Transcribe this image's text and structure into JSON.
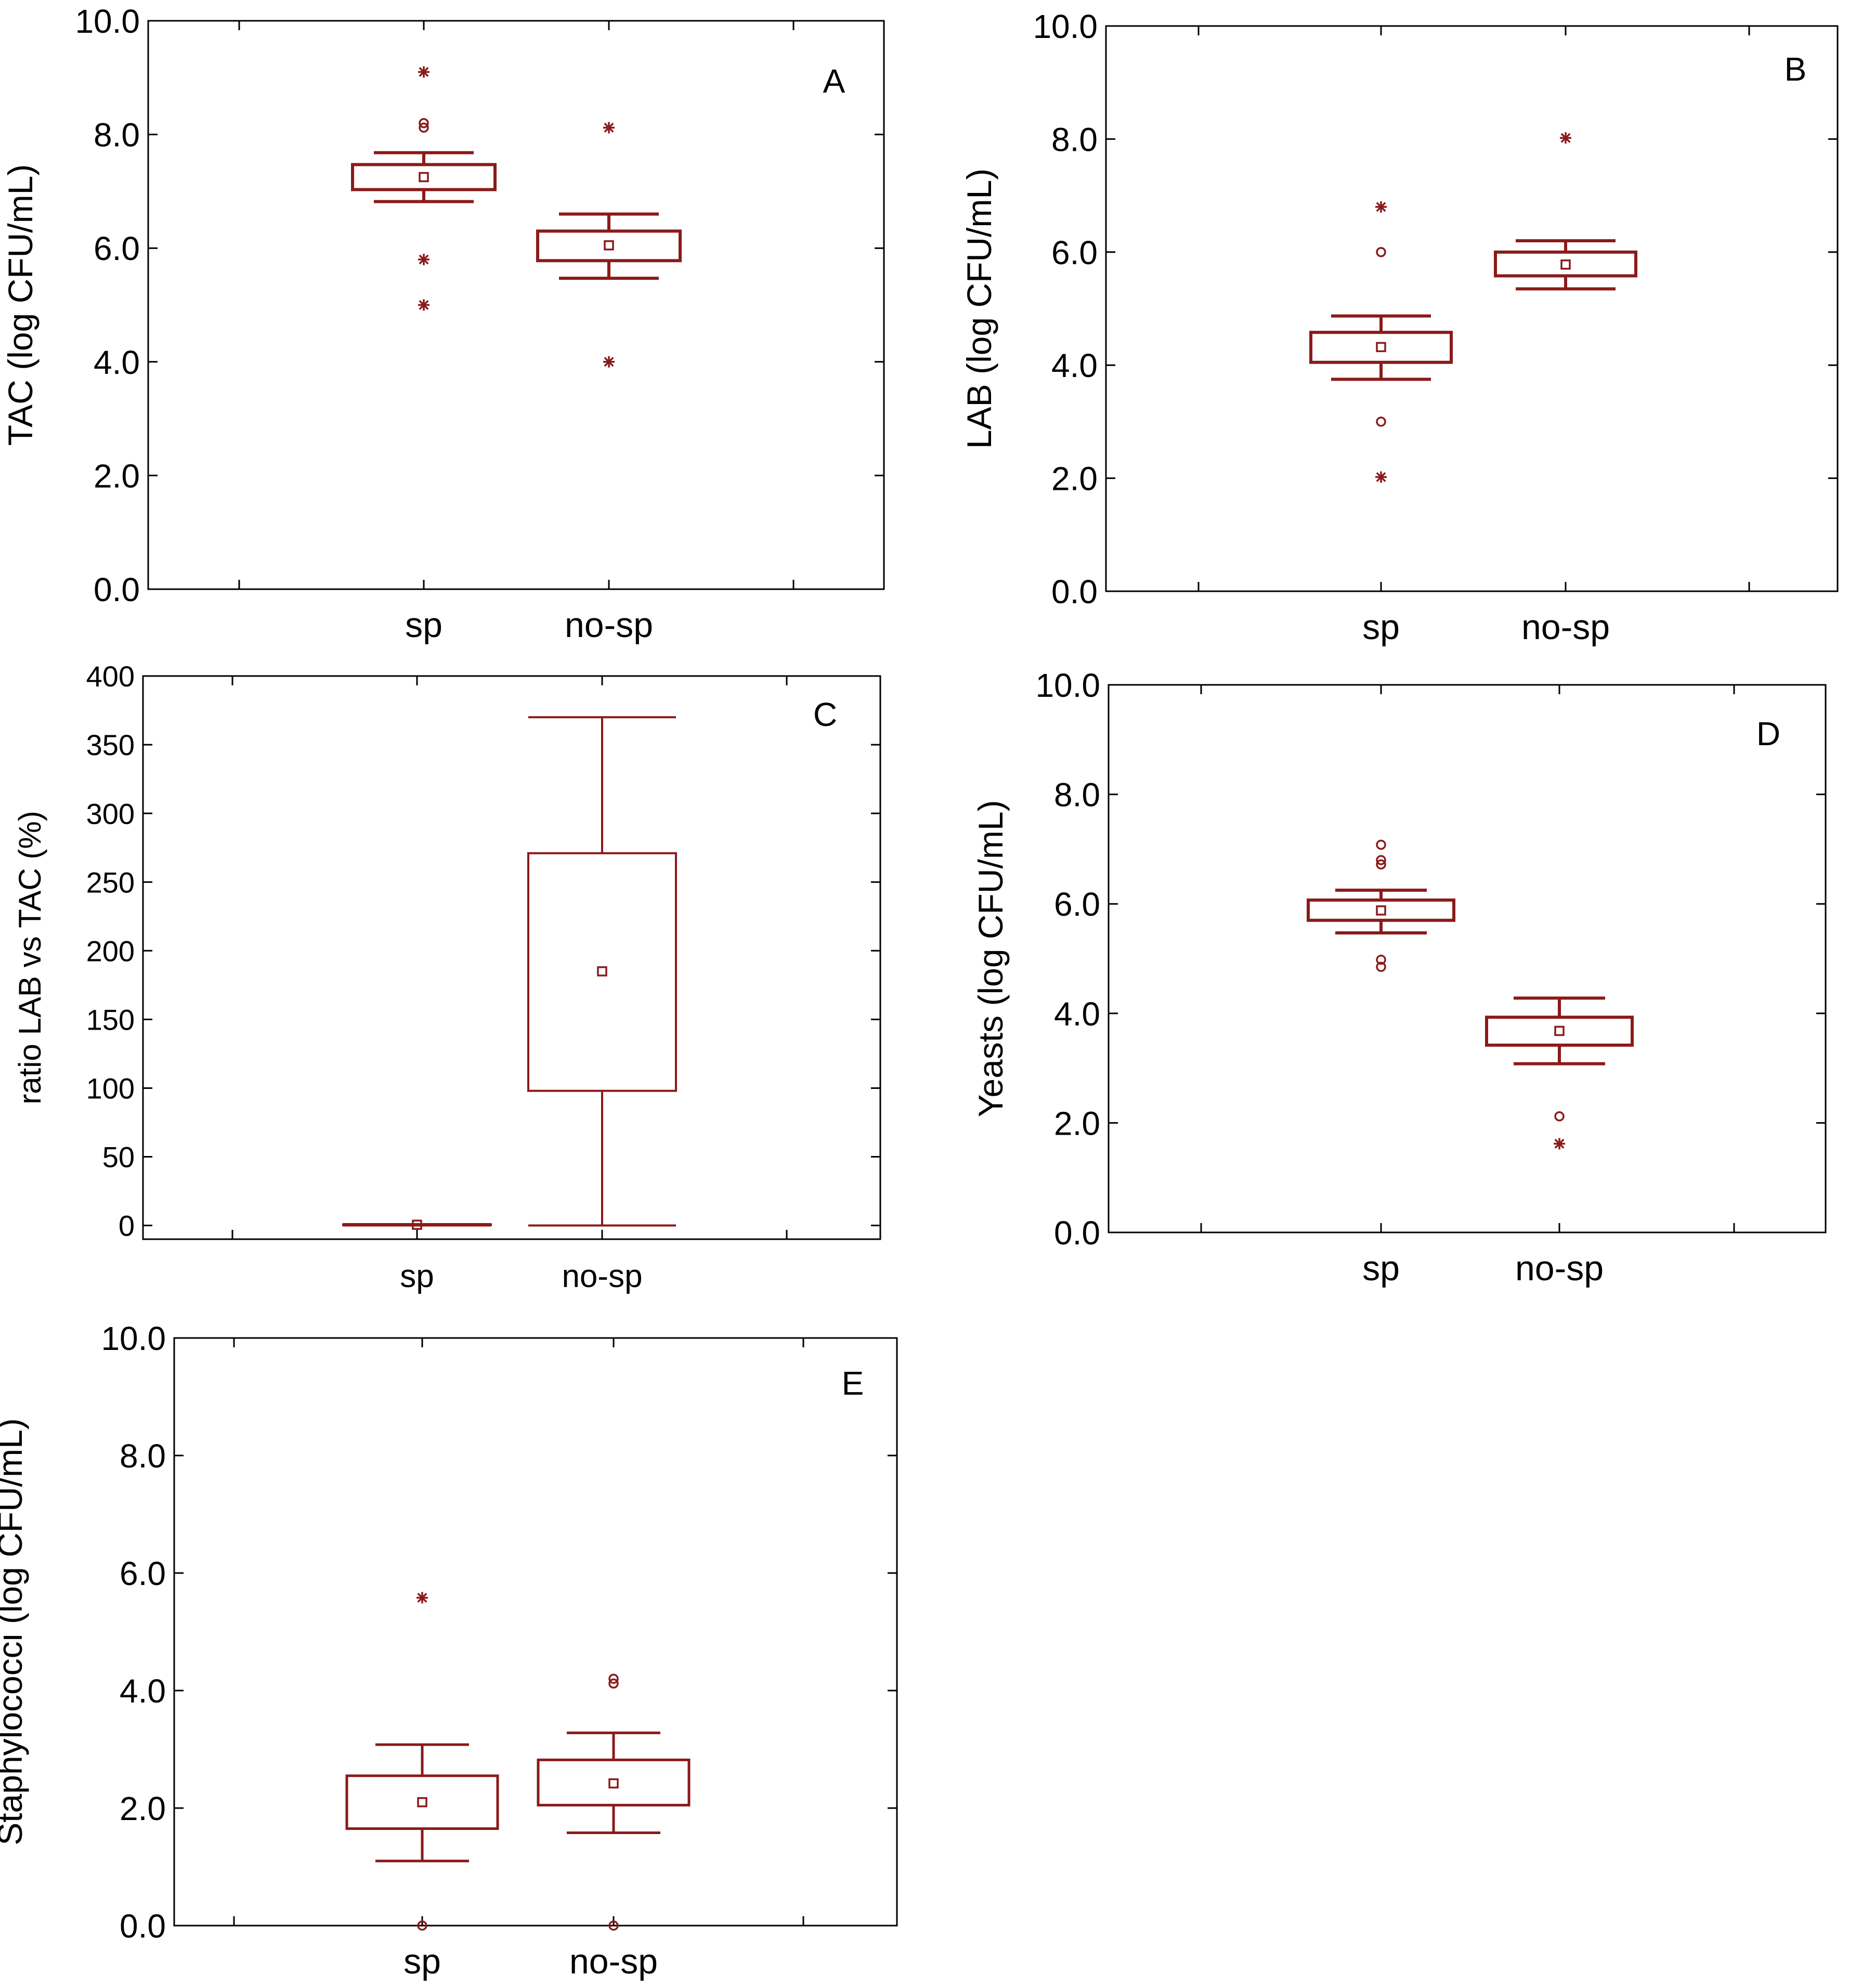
{
  "colors": {
    "mark": "#8B1A1A",
    "frame": "#000000",
    "text": "#000000"
  },
  "chart_data": [
    {
      "type": "box",
      "panel_label": "A",
      "ylabel": "TAC (log CFU/mL)",
      "ylim": [
        0,
        10
      ],
      "yticks": [
        0,
        2,
        4,
        6,
        8,
        10
      ],
      "ytick_labels": [
        "0.0",
        "2.0",
        "4.0",
        "6.0",
        "8.0",
        "10.0"
      ],
      "categories": [
        "sp",
        "no-sp"
      ],
      "boxes": [
        {
          "category": "sp",
          "mean": 7.25,
          "q1": 7.03,
          "q3": 7.47,
          "whisker_low": 6.82,
          "whisker_high": 7.68,
          "outliers": [
            8.2,
            8.12
          ],
          "extremes": [
            9.1,
            5.8,
            5.0
          ]
        },
        {
          "category": "no-sp",
          "mean": 6.05,
          "q1": 5.78,
          "q3": 6.3,
          "whisker_low": 5.47,
          "whisker_high": 6.6,
          "outliers": [],
          "extremes": [
            8.12,
            4.0
          ]
        }
      ]
    },
    {
      "type": "box",
      "panel_label": "B",
      "ylabel": "LAB (log CFU/mL)",
      "ylim": [
        0,
        10
      ],
      "yticks": [
        0,
        2,
        4,
        6,
        8,
        10
      ],
      "ytick_labels": [
        "0.0",
        "2.0",
        "4.0",
        "6.0",
        "8.0",
        "10.0"
      ],
      "categories": [
        "sp",
        "no-sp"
      ],
      "boxes": [
        {
          "category": "sp",
          "mean": 4.32,
          "q1": 4.05,
          "q3": 4.58,
          "whisker_low": 3.75,
          "whisker_high": 4.87,
          "outliers": [
            6.0,
            3.0
          ],
          "extremes": [
            6.8,
            2.02
          ]
        },
        {
          "category": "no-sp",
          "mean": 5.78,
          "q1": 5.58,
          "q3": 6.0,
          "whisker_low": 5.35,
          "whisker_high": 6.2,
          "outliers": [],
          "extremes": [
            8.02
          ]
        }
      ]
    },
    {
      "type": "box",
      "panel_label": "C",
      "ylabel": "ratio LAB vs TAC (%)",
      "ylim": [
        -10,
        400
      ],
      "yticks": [
        0,
        50,
        100,
        150,
        200,
        250,
        300,
        350,
        400
      ],
      "ytick_labels": [
        "0",
        "50",
        "100",
        "150",
        "200",
        "250",
        "300",
        "350",
        "400"
      ],
      "categories": [
        "sp",
        "no-sp"
      ],
      "boxes": [
        {
          "category": "sp",
          "mean": 0.5,
          "q1": 0.2,
          "q3": 0.8,
          "whisker_low": 0,
          "whisker_high": 1,
          "outliers": [],
          "extremes": []
        },
        {
          "category": "no-sp",
          "mean": 185,
          "q1": 98,
          "q3": 271,
          "whisker_low": 0,
          "whisker_high": 370,
          "outliers": [],
          "extremes": []
        }
      ]
    },
    {
      "type": "box",
      "panel_label": "D",
      "ylabel": "Yeasts (log CFU/mL)",
      "ylim": [
        0,
        10
      ],
      "yticks": [
        0,
        2,
        4,
        6,
        8,
        10
      ],
      "ytick_labels": [
        "0.0",
        "2.0",
        "4.0",
        "6.0",
        "8.0",
        "10.0"
      ],
      "categories": [
        "sp",
        "no-sp"
      ],
      "boxes": [
        {
          "category": "sp",
          "mean": 5.88,
          "q1": 5.7,
          "q3": 6.07,
          "whisker_low": 5.47,
          "whisker_high": 6.25,
          "outliers": [
            7.08,
            6.8,
            6.72,
            4.98,
            4.85
          ],
          "extremes": []
        },
        {
          "category": "no-sp",
          "mean": 3.68,
          "q1": 3.42,
          "q3": 3.93,
          "whisker_low": 3.08,
          "whisker_high": 4.28,
          "outliers": [
            2.12
          ],
          "extremes": [
            1.62
          ]
        }
      ]
    },
    {
      "type": "box",
      "panel_label": "E",
      "ylabel": "Staphylococci (log CFU/mL)",
      "ylim": [
        0,
        10
      ],
      "yticks": [
        0,
        2,
        4,
        6,
        8,
        10
      ],
      "ytick_labels": [
        "0.0",
        "2.0",
        "4.0",
        "6.0",
        "8.0",
        "10.0"
      ],
      "categories": [
        "sp",
        "no-sp"
      ],
      "boxes": [
        {
          "category": "sp",
          "mean": 2.1,
          "q1": 1.65,
          "q3": 2.55,
          "whisker_low": 1.1,
          "whisker_high": 3.08,
          "outliers": [
            0.0
          ],
          "extremes": [
            5.58
          ]
        },
        {
          "category": "no-sp",
          "mean": 2.42,
          "q1": 2.05,
          "q3": 2.82,
          "whisker_low": 1.58,
          "whisker_high": 3.28,
          "outliers": [
            4.2,
            4.12,
            0.0
          ],
          "extremes": []
        }
      ]
    }
  ]
}
